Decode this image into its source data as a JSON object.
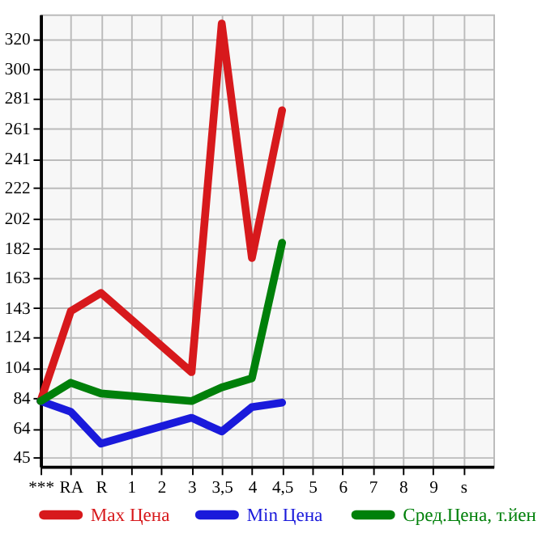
{
  "chart_data": {
    "type": "line",
    "categories": [
      "***",
      "RA",
      "R",
      "1",
      "2",
      "3",
      "3,5",
      "4",
      "4,5",
      "5",
      "6",
      "7",
      "8",
      "9",
      "s"
    ],
    "series": [
      {
        "name": "Max Цена",
        "color": "#d7191c",
        "values": [
          82,
          141,
          153,
          null,
          null,
          101,
          330,
          176,
          273,
          null,
          null,
          null,
          null,
          null,
          null
        ]
      },
      {
        "name": "Min Цена",
        "color": "#1a1adb",
        "values": [
          82,
          75,
          54,
          null,
          null,
          71,
          62,
          78,
          81,
          null,
          null,
          null,
          null,
          null,
          null
        ]
      },
      {
        "name": "Сред.Цена, т.йен",
        "color": "#00800a",
        "values": [
          82,
          94,
          87,
          null,
          null,
          82,
          91,
          97,
          186,
          null,
          null,
          null,
          null,
          null,
          null
        ]
      }
    ],
    "ylim": [
      39,
      336
    ],
    "yticks": [
      45,
      64,
      84,
      104,
      124,
      143,
      163,
      182,
      202,
      222,
      241,
      261,
      281,
      300,
      320
    ],
    "grid": true,
    "legend": "bottom",
    "marker": "none",
    "line_style": "solid"
  }
}
